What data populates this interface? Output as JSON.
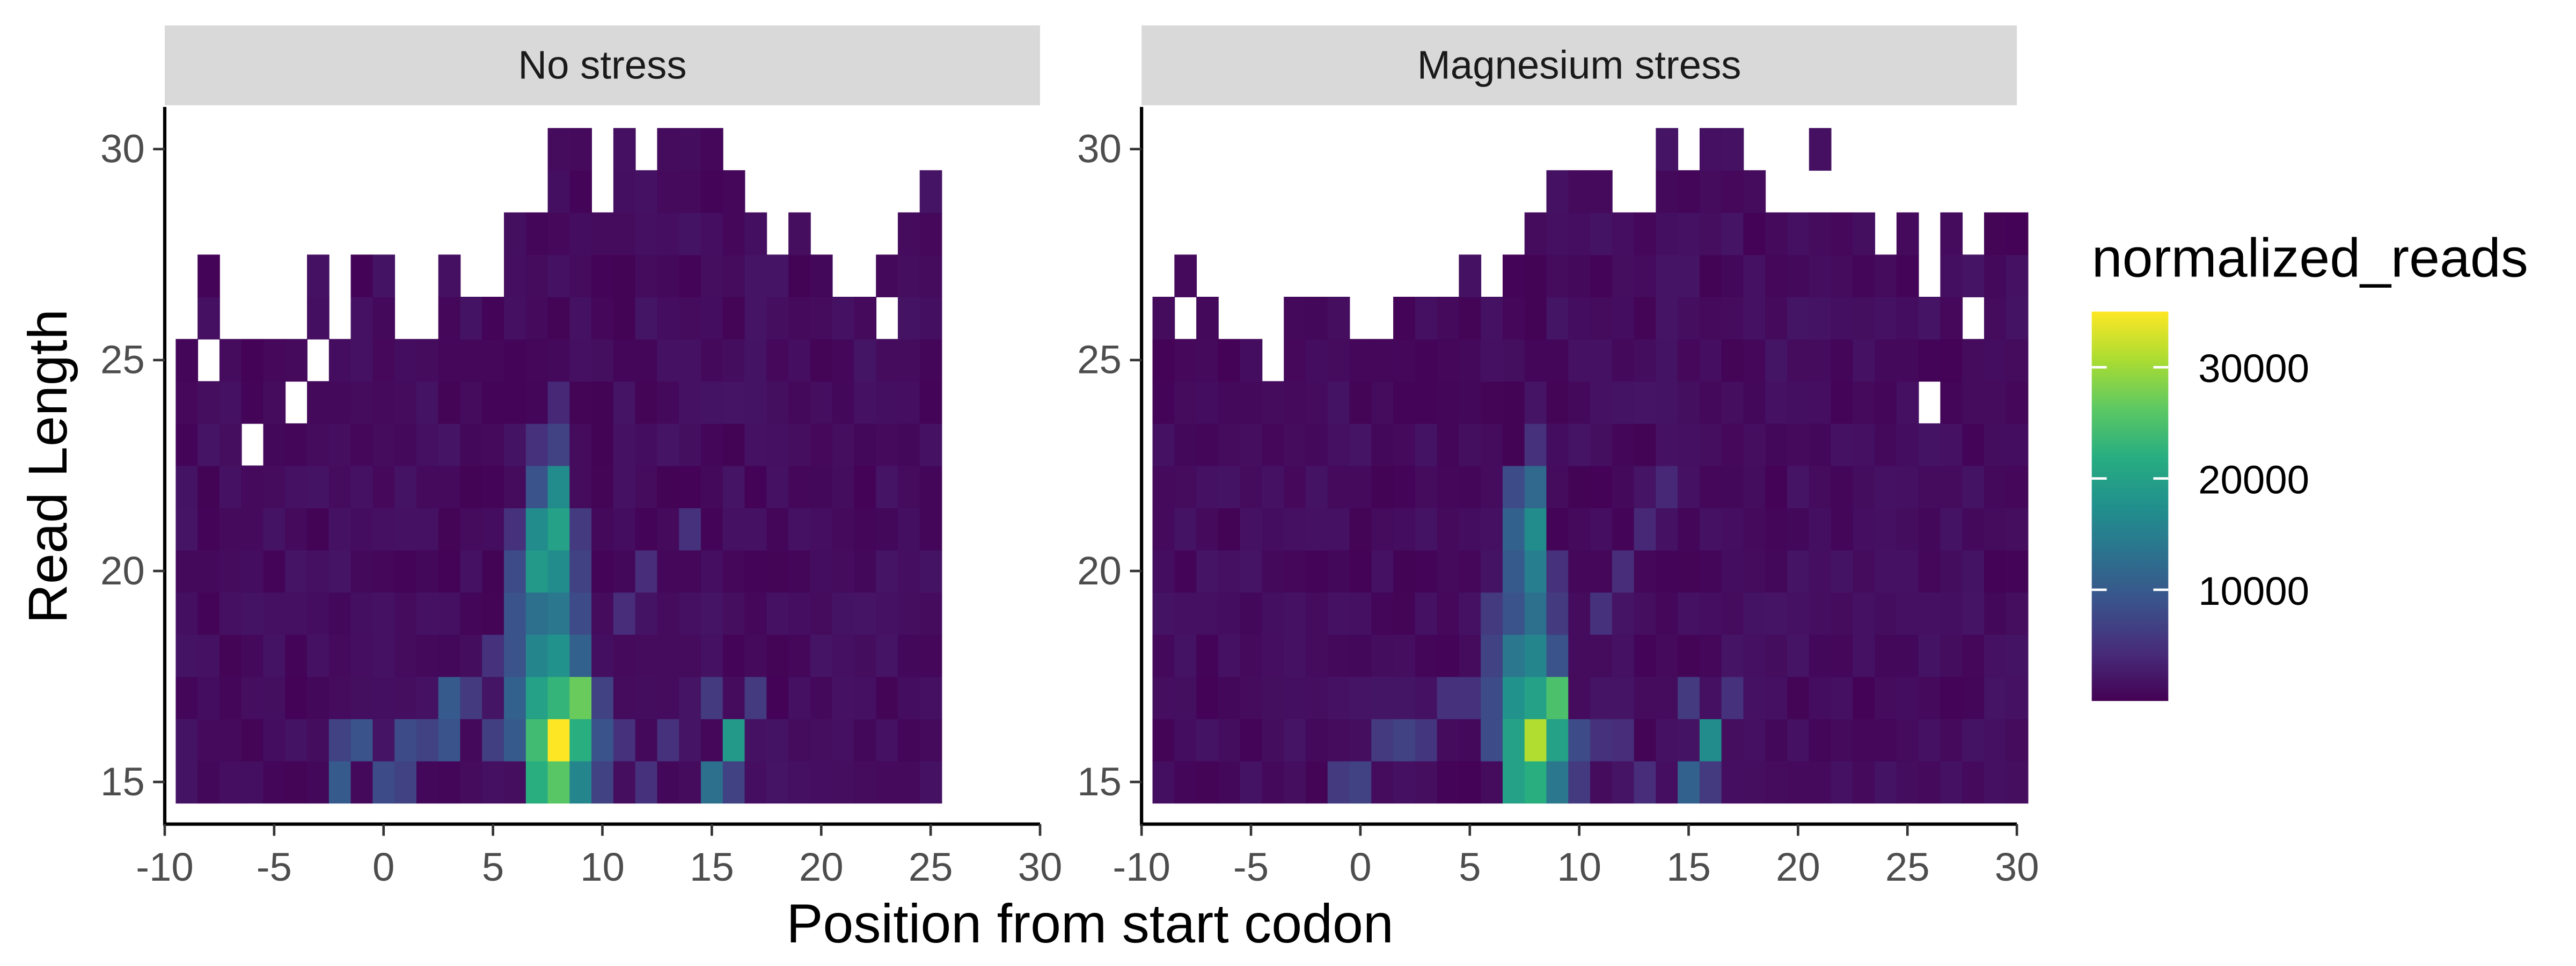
{
  "figure": {
    "xlabel": "Position from start codon",
    "ylabel": "Read Length"
  },
  "legend": {
    "title": "normalized_reads",
    "ticks": [
      10000,
      20000,
      30000
    ],
    "tick_labels": [
      "10000",
      "20000",
      "30000"
    ],
    "range": [
      0,
      35000
    ],
    "colormap": "viridis"
  },
  "chart_data": [
    {
      "type": "heatmap",
      "panel": "No stress",
      "x_range": [
        -10,
        30
      ],
      "y_range": [
        14,
        31
      ],
      "x_ticks": [
        "-10",
        "-5",
        "0",
        "5",
        "10",
        "15",
        "20",
        "25",
        "30"
      ],
      "y_ticks": [
        "15",
        "20",
        "25",
        "30"
      ],
      "x_tick_values": [
        -10,
        -5,
        0,
        5,
        10,
        15,
        20,
        25,
        30
      ],
      "y_tick_values": [
        15,
        20,
        25,
        30
      ],
      "top_row": [
        26,
        27,
        25,
        25,
        25,
        25,
        27,
        25,
        27,
        27,
        25,
        25,
        27,
        26,
        26,
        28,
        28,
        30,
        30,
        29,
        30,
        29,
        30,
        30,
        30,
        29,
        28,
        28,
        28,
        27,
        26,
        26,
        27,
        28,
        29
      ],
      "missing_cells": [
        [
          -9,
          26
        ],
        [
          -8,
          25
        ],
        [
          -6,
          23
        ],
        [
          -4,
          24
        ],
        [
          -3,
          25
        ],
        [
          -2,
          26
        ],
        [
          10,
          29
        ],
        [
          18,
          28
        ],
        [
          23,
          26
        ],
        [
          26,
          24
        ],
        [
          27,
          26
        ],
        [
          28,
          26
        ]
      ],
      "hotspots": [
        {
          "x": 7,
          "y": 15,
          "v": 22000
        },
        {
          "x": 7,
          "y": 16,
          "v": 24000
        },
        {
          "x": 7,
          "y": 17,
          "v": 20000
        },
        {
          "x": 7,
          "y": 18,
          "v": 16000
        },
        {
          "x": 7,
          "y": 19,
          "v": 13000
        },
        {
          "x": 7,
          "y": 20,
          "v": 19000
        },
        {
          "x": 7,
          "y": 21,
          "v": 17000
        },
        {
          "x": 7,
          "y": 22,
          "v": 9000
        },
        {
          "x": 7,
          "y": 23,
          "v": 5000
        },
        {
          "x": 8,
          "y": 15,
          "v": 26000
        },
        {
          "x": 8,
          "y": 16,
          "v": 35000
        },
        {
          "x": 8,
          "y": 17,
          "v": 23000
        },
        {
          "x": 8,
          "y": 18,
          "v": 18000
        },
        {
          "x": 8,
          "y": 19,
          "v": 14000
        },
        {
          "x": 8,
          "y": 20,
          "v": 17000
        },
        {
          "x": 8,
          "y": 21,
          "v": 20000
        },
        {
          "x": 8,
          "y": 22,
          "v": 17000
        },
        {
          "x": 8,
          "y": 23,
          "v": 7000
        },
        {
          "x": 8,
          "y": 24,
          "v": 4000
        },
        {
          "x": 9,
          "y": 15,
          "v": 16000
        },
        {
          "x": 9,
          "y": 16,
          "v": 22000
        },
        {
          "x": 9,
          "y": 17,
          "v": 27000
        },
        {
          "x": 9,
          "y": 18,
          "v": 11000
        },
        {
          "x": 9,
          "y": 19,
          "v": 8000
        },
        {
          "x": 9,
          "y": 20,
          "v": 7000
        },
        {
          "x": 9,
          "y": 21,
          "v": 6000
        },
        {
          "x": 6,
          "y": 16,
          "v": 10000
        },
        {
          "x": 6,
          "y": 17,
          "v": 11000
        },
        {
          "x": 6,
          "y": 18,
          "v": 9000
        },
        {
          "x": 6,
          "y": 19,
          "v": 9000
        },
        {
          "x": 6,
          "y": 20,
          "v": 8000
        },
        {
          "x": 6,
          "y": 21,
          "v": 5000
        },
        {
          "x": 10,
          "y": 16,
          "v": 9000
        },
        {
          "x": 10,
          "y": 15,
          "v": 7000
        },
        {
          "x": 10,
          "y": 17,
          "v": 7000
        },
        {
          "x": 3,
          "y": 17,
          "v": 10000
        },
        {
          "x": 3,
          "y": 16,
          "v": 9000
        },
        {
          "x": 2,
          "y": 16,
          "v": 7000
        },
        {
          "x": 1,
          "y": 16,
          "v": 8000
        },
        {
          "x": -1,
          "y": 16,
          "v": 9000
        },
        {
          "x": -2,
          "y": 15,
          "v": 10000
        },
        {
          "x": -2,
          "y": 16,
          "v": 7000
        },
        {
          "x": 0,
          "y": 15,
          "v": 8000
        },
        {
          "x": 1,
          "y": 15,
          "v": 7000
        },
        {
          "x": 15,
          "y": 15,
          "v": 13000
        },
        {
          "x": 16,
          "y": 16,
          "v": 19000
        },
        {
          "x": 16,
          "y": 15,
          "v": 7000
        },
        {
          "x": 17,
          "y": 17,
          "v": 6000
        },
        {
          "x": 15,
          "y": 17,
          "v": 6000
        },
        {
          "x": 14,
          "y": 21,
          "v": 5000
        },
        {
          "x": 12,
          "y": 20,
          "v": 4500
        },
        {
          "x": 11,
          "y": 19,
          "v": 4500
        },
        {
          "x": 5,
          "y": 18,
          "v": 5000
        },
        {
          "x": 4,
          "y": 17,
          "v": 6000
        },
        {
          "x": 5,
          "y": 16,
          "v": 6500
        },
        {
          "x": 11,
          "y": 16,
          "v": 5000
        },
        {
          "x": 12,
          "y": 15,
          "v": 5000
        },
        {
          "x": 13,
          "y": 16,
          "v": 5000
        }
      ]
    },
    {
      "type": "heatmap",
      "panel": "Magnesium stress",
      "x_range": [
        -10,
        30
      ],
      "y_range": [
        14,
        31
      ],
      "x_ticks": [
        "-10",
        "-5",
        "0",
        "5",
        "10",
        "15",
        "20",
        "25",
        "30"
      ],
      "y_ticks": [
        "15",
        "20",
        "25",
        "30"
      ],
      "x_tick_values": [
        -10,
        -5,
        0,
        5,
        10,
        15,
        20,
        25,
        30
      ],
      "y_tick_values": [
        15,
        20,
        25,
        30
      ],
      "top_row": [
        26,
        27,
        26,
        25,
        25,
        24,
        26,
        26,
        26,
        25,
        25,
        26,
        26,
        26,
        27,
        26,
        27,
        28,
        29,
        29,
        29,
        28,
        28,
        30,
        29,
        30,
        30,
        29,
        28,
        28,
        30,
        28,
        28,
        27,
        28,
        26,
        28,
        27,
        28,
        28
      ],
      "missing_cells": [
        [
          -8,
          26
        ],
        [
          21,
          29
        ],
        [
          26,
          24
        ],
        [
          28,
          26
        ]
      ],
      "hotspots": [
        {
          "x": 7,
          "y": 15,
          "v": 20000
        },
        {
          "x": 7,
          "y": 16,
          "v": 20000
        },
        {
          "x": 7,
          "y": 17,
          "v": 18000
        },
        {
          "x": 7,
          "y": 18,
          "v": 14000
        },
        {
          "x": 7,
          "y": 19,
          "v": 9000
        },
        {
          "x": 7,
          "y": 20,
          "v": 10000
        },
        {
          "x": 7,
          "y": 21,
          "v": 11000
        },
        {
          "x": 7,
          "y": 22,
          "v": 8000
        },
        {
          "x": 8,
          "y": 15,
          "v": 22000
        },
        {
          "x": 8,
          "y": 16,
          "v": 31000
        },
        {
          "x": 8,
          "y": 17,
          "v": 20000
        },
        {
          "x": 8,
          "y": 18,
          "v": 16000
        },
        {
          "x": 8,
          "y": 19,
          "v": 13000
        },
        {
          "x": 8,
          "y": 20,
          "v": 15000
        },
        {
          "x": 8,
          "y": 21,
          "v": 17000
        },
        {
          "x": 8,
          "y": 22,
          "v": 12000
        },
        {
          "x": 8,
          "y": 23,
          "v": 5000
        },
        {
          "x": 9,
          "y": 15,
          "v": 14000
        },
        {
          "x": 9,
          "y": 16,
          "v": 20000
        },
        {
          "x": 9,
          "y": 17,
          "v": 25000
        },
        {
          "x": 9,
          "y": 18,
          "v": 9000
        },
        {
          "x": 9,
          "y": 19,
          "v": 6000
        },
        {
          "x": 9,
          "y": 20,
          "v": 5000
        },
        {
          "x": 6,
          "y": 16,
          "v": 8000
        },
        {
          "x": 6,
          "y": 17,
          "v": 8000
        },
        {
          "x": 6,
          "y": 18,
          "v": 7000
        },
        {
          "x": 6,
          "y": 19,
          "v": 6000
        },
        {
          "x": 10,
          "y": 16,
          "v": 8000
        },
        {
          "x": 10,
          "y": 15,
          "v": 6000
        },
        {
          "x": 16,
          "y": 16,
          "v": 17000
        },
        {
          "x": 15,
          "y": 15,
          "v": 11000
        },
        {
          "x": 16,
          "y": 15,
          "v": 6000
        },
        {
          "x": 15,
          "y": 17,
          "v": 6000
        },
        {
          "x": 17,
          "y": 17,
          "v": 5000
        },
        {
          "x": 0,
          "y": 15,
          "v": 7000
        },
        {
          "x": -1,
          "y": 15,
          "v": 6000
        },
        {
          "x": 1,
          "y": 16,
          "v": 6000
        },
        {
          "x": 2,
          "y": 16,
          "v": 7000
        },
        {
          "x": 3,
          "y": 16,
          "v": 5500
        },
        {
          "x": 4,
          "y": 17,
          "v": 5000
        },
        {
          "x": 5,
          "y": 17,
          "v": 5000
        },
        {
          "x": 11,
          "y": 19,
          "v": 5000
        },
        {
          "x": 12,
          "y": 20,
          "v": 4500
        },
        {
          "x": 13,
          "y": 21,
          "v": 4000
        },
        {
          "x": 14,
          "y": 22,
          "v": 4000
        },
        {
          "x": 11,
          "y": 16,
          "v": 5000
        },
        {
          "x": 12,
          "y": 16,
          "v": 4500
        },
        {
          "x": 13,
          "y": 15,
          "v": 4500
        }
      ]
    }
  ]
}
